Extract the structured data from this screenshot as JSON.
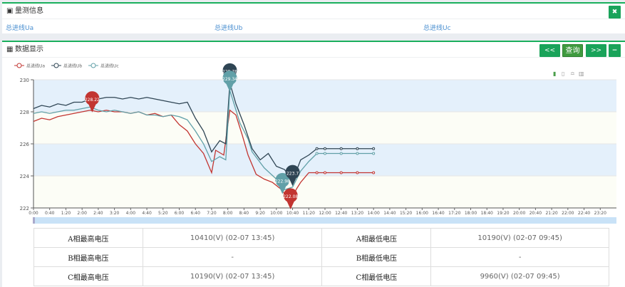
{
  "measure_panel": {
    "title": "量测信息",
    "close_icon": "close-icon",
    "feeders": [
      "总进线Ua",
      "总进线Ub",
      "总进线Uc"
    ]
  },
  "data_panel": {
    "title": "数据显示",
    "buttons": {
      "prev": "<<",
      "query": "查询",
      "next": ">>",
      "collapse": "−"
    },
    "toolbox": [
      "excel-icon",
      "document-icon",
      "line-chart-icon",
      "bar-chart-icon"
    ]
  },
  "chart_data": {
    "type": "line",
    "x_ticks": [
      "0:00",
      "0:40",
      "1:20",
      "2:00",
      "2:40",
      "3:20",
      "4:00",
      "4:40",
      "5:20",
      "6:00",
      "6:40",
      "7:20",
      "8:00",
      "8:40",
      "9:20",
      "10:00",
      "10:40",
      "11:20",
      "12:00",
      "12:40",
      "13:20",
      "14:00",
      "14:40",
      "15:20",
      "16:00",
      "16:40",
      "17:20",
      "18:00",
      "18:40",
      "19:20",
      "20:00",
      "20:40",
      "21:20",
      "22:00",
      "22:40",
      "23:20"
    ],
    "y_ticks": [
      222,
      224,
      226,
      228,
      230
    ],
    "ylim": [
      222,
      230
    ],
    "xlim": [
      "0:00",
      "24:00"
    ],
    "grid": "horizontal bands",
    "legend_position": "top-left",
    "series": [
      {
        "name": "总进线Ua",
        "color": "#c23531",
        "values": [
          [
            "0:00",
            227.4
          ],
          [
            "0:20",
            227.6
          ],
          [
            "0:40",
            227.5
          ],
          [
            "1:00",
            227.7
          ],
          [
            "1:20",
            227.8
          ],
          [
            "1:40",
            227.9
          ],
          [
            "2:00",
            228.0
          ],
          [
            "2:20",
            228.1
          ],
          [
            "2:40",
            228.0
          ],
          [
            "3:00",
            228.1
          ],
          [
            "3:20",
            228.0
          ],
          [
            "3:40",
            228.0
          ],
          [
            "4:00",
            227.9
          ],
          [
            "4:20",
            228.0
          ],
          [
            "4:40",
            227.8
          ],
          [
            "5:00",
            227.9
          ],
          [
            "5:20",
            227.7
          ],
          [
            "5:40",
            227.8
          ],
          [
            "6:00",
            227.2
          ],
          [
            "6:20",
            226.8
          ],
          [
            "6:40",
            226.0
          ],
          [
            "7:00",
            225.4
          ],
          [
            "7:20",
            224.2
          ],
          [
            "7:30",
            225.6
          ],
          [
            "7:50",
            225.3
          ],
          [
            "8:05",
            228.1
          ],
          [
            "8:20",
            227.8
          ],
          [
            "8:35",
            226.6
          ],
          [
            "8:50",
            225.3
          ],
          [
            "9:10",
            224.1
          ],
          [
            "9:30",
            223.8
          ],
          [
            "9:50",
            223.6
          ],
          [
            "10:10",
            223.2
          ],
          [
            "10:35",
            222.45
          ],
          [
            "10:50",
            223.2
          ],
          [
            "11:00",
            223.6
          ],
          [
            "11:20",
            224.2
          ],
          [
            "11:40",
            224.2
          ],
          [
            "12:00",
            224.2
          ],
          [
            "12:40",
            224.2
          ],
          [
            "13:20",
            224.2
          ],
          [
            "14:00",
            224.2
          ]
        ],
        "marker": {
          "time": "2:25",
          "value": "228.22"
        },
        "min_marker": {
          "time": "10:35",
          "value": "222.08"
        }
      },
      {
        "name": "总进线Ub",
        "color": "#2f4554",
        "values": [
          [
            "0:00",
            228.2
          ],
          [
            "0:20",
            228.4
          ],
          [
            "0:40",
            228.3
          ],
          [
            "1:00",
            228.5
          ],
          [
            "1:20",
            228.4
          ],
          [
            "1:40",
            228.6
          ],
          [
            "2:00",
            228.6
          ],
          [
            "2:20",
            228.8
          ],
          [
            "2:40",
            228.8
          ],
          [
            "3:00",
            228.9
          ],
          [
            "3:20",
            228.9
          ],
          [
            "3:40",
            228.8
          ],
          [
            "4:00",
            228.9
          ],
          [
            "4:20",
            228.8
          ],
          [
            "4:40",
            228.9
          ],
          [
            "5:00",
            228.8
          ],
          [
            "5:20",
            228.7
          ],
          [
            "5:40",
            228.6
          ],
          [
            "6:00",
            228.5
          ],
          [
            "6:20",
            228.6
          ],
          [
            "6:40",
            227.6
          ],
          [
            "7:00",
            226.8
          ],
          [
            "7:20",
            225.5
          ],
          [
            "7:40",
            226.2
          ],
          [
            "7:55",
            226.0
          ],
          [
            "8:05",
            229.8
          ],
          [
            "8:20",
            228.5
          ],
          [
            "8:40",
            227.2
          ],
          [
            "9:00",
            225.7
          ],
          [
            "9:20",
            225.0
          ],
          [
            "9:40",
            225.4
          ],
          [
            "10:00",
            224.6
          ],
          [
            "10:20",
            224.4
          ],
          [
            "10:40",
            223.7
          ],
          [
            "11:00",
            225.0
          ],
          [
            "11:20",
            225.3
          ],
          [
            "11:40",
            225.7
          ],
          [
            "12:00",
            225.7
          ],
          [
            "12:40",
            225.7
          ],
          [
            "13:20",
            225.7
          ],
          [
            "14:00",
            225.7
          ]
        ],
        "marker": {
          "time": "8:05",
          "value": "229.76"
        },
        "min_marker": {
          "time": "10:40",
          "value": "223.7"
        }
      },
      {
        "name": "总进线Uc",
        "color": "#61a0a8",
        "values": [
          [
            "0:00",
            227.9
          ],
          [
            "0:20",
            228.0
          ],
          [
            "0:40",
            227.9
          ],
          [
            "1:00",
            228.0
          ],
          [
            "1:20",
            228.1
          ],
          [
            "1:40",
            228.1
          ],
          [
            "2:00",
            228.2
          ],
          [
            "2:20",
            228.3
          ],
          [
            "2:40",
            228.1
          ],
          [
            "3:00",
            228.0
          ],
          [
            "3:20",
            228.1
          ],
          [
            "3:40",
            228.0
          ],
          [
            "4:00",
            227.9
          ],
          [
            "4:20",
            228.0
          ],
          [
            "4:40",
            227.8
          ],
          [
            "5:00",
            227.8
          ],
          [
            "5:20",
            227.7
          ],
          [
            "5:40",
            227.8
          ],
          [
            "6:00",
            227.7
          ],
          [
            "6:20",
            227.5
          ],
          [
            "6:40",
            226.8
          ],
          [
            "7:00",
            226.0
          ],
          [
            "7:20",
            224.9
          ],
          [
            "7:40",
            225.2
          ],
          [
            "7:55",
            225.0
          ],
          [
            "8:05",
            229.34
          ],
          [
            "8:30",
            227.3
          ],
          [
            "8:50",
            226.3
          ],
          [
            "9:00",
            225.5
          ],
          [
            "9:30",
            224.5
          ],
          [
            "10:00",
            223.8
          ],
          [
            "10:15",
            223.1
          ],
          [
            "10:40",
            223.3
          ],
          [
            "11:00",
            224.3
          ],
          [
            "11:20",
            224.9
          ],
          [
            "11:40",
            225.4
          ],
          [
            "12:00",
            225.4
          ],
          [
            "12:40",
            225.4
          ],
          [
            "13:20",
            225.4
          ],
          [
            "14:00",
            225.4
          ]
        ],
        "marker": {
          "time": "8:05",
          "value": "229.34"
        },
        "min_marker": {
          "time": "10:15",
          "value": "222.98"
        }
      }
    ]
  },
  "table": {
    "rows": [
      [
        "A相最高电压",
        "10410(V) (02-07 13:45)",
        "A相最低电压",
        "10190(V) (02-07 09:45)"
      ],
      [
        "B相最高电压",
        "-",
        "B相最低电压",
        "-"
      ],
      [
        "C相最高电压",
        "10190(V) (02-07 13:45)",
        "C相最低电压",
        "9960(V) (02-07 09:45)"
      ]
    ]
  }
}
